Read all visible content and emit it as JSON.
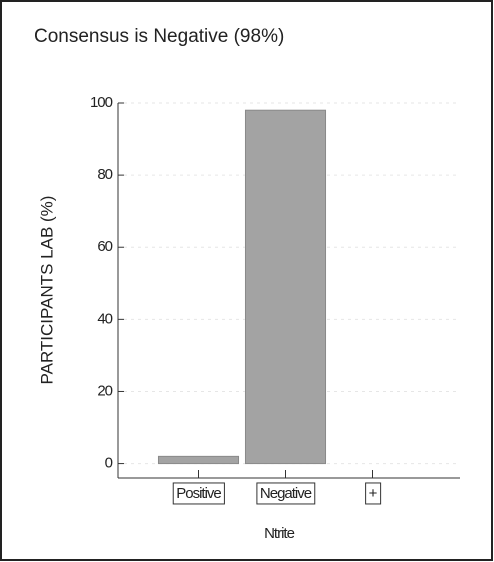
{
  "chart_data": {
    "type": "bar",
    "title": "Consensus is Negative (98%)",
    "y_label": "PARTICIPANTS LAB (%)",
    "x_label": "Ntrite",
    "categories": [
      "Positive",
      "Negative",
      "+"
    ],
    "values": [
      2,
      98,
      0
    ],
    "color": "#a3a3a3",
    "ylim": [
      -4,
      100
    ],
    "yticks": [
      0,
      20,
      40,
      60,
      80,
      100
    ],
    "grid": true
  }
}
